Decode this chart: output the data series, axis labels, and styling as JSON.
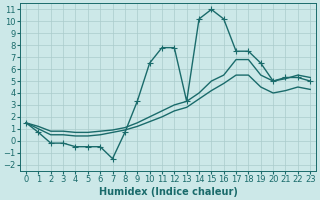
{
  "xlabel": "Humidex (Indice chaleur)",
  "xlim": [
    -0.5,
    23.5
  ],
  "ylim": [
    -2.5,
    11.5
  ],
  "xticks": [
    0,
    1,
    2,
    3,
    4,
    5,
    6,
    7,
    8,
    9,
    10,
    11,
    12,
    13,
    14,
    15,
    16,
    17,
    18,
    19,
    20,
    21,
    22,
    23
  ],
  "yticks": [
    -2,
    -1,
    0,
    1,
    2,
    3,
    4,
    5,
    6,
    7,
    8,
    9,
    10,
    11
  ],
  "bg_color": "#cce8e8",
  "grid_color": "#aacccc",
  "line_color": "#1a6b6b",
  "line1_x": [
    0,
    1,
    2,
    3,
    4,
    5,
    6,
    7,
    8,
    9,
    10,
    11,
    12,
    13,
    14,
    15,
    16,
    17,
    18,
    19,
    20,
    21,
    22,
    23
  ],
  "line1_y": [
    1.5,
    0.7,
    -0.2,
    -0.2,
    -0.5,
    -0.5,
    -0.5,
    -1.5,
    0.7,
    3.3,
    6.5,
    7.8,
    7.8,
    3.3,
    10.2,
    11.0,
    10.2,
    7.5,
    7.5,
    6.5,
    5.0,
    5.3,
    5.3,
    5.0
  ],
  "line2_x": [
    0,
    1,
    2,
    3,
    4,
    5,
    6,
    7,
    8,
    9,
    10,
    11,
    12,
    13,
    14,
    15,
    16,
    17,
    18,
    19,
    20,
    21,
    22,
    23
  ],
  "line2_y": [
    1.5,
    1.2,
    0.8,
    0.8,
    0.7,
    0.7,
    0.8,
    0.9,
    1.1,
    1.5,
    2.0,
    2.5,
    3.0,
    3.3,
    4.0,
    5.0,
    5.5,
    6.8,
    6.8,
    5.5,
    5.0,
    5.2,
    5.5,
    5.3
  ],
  "line3_x": [
    0,
    1,
    2,
    3,
    4,
    5,
    6,
    7,
    8,
    9,
    10,
    11,
    12,
    13,
    14,
    15,
    16,
    17,
    18,
    19,
    20,
    21,
    22,
    23
  ],
  "line3_y": [
    1.5,
    1.0,
    0.5,
    0.5,
    0.4,
    0.4,
    0.5,
    0.7,
    0.9,
    1.2,
    1.6,
    2.0,
    2.5,
    2.8,
    3.5,
    4.2,
    4.8,
    5.5,
    5.5,
    4.5,
    4.0,
    4.2,
    4.5,
    4.3
  ],
  "marker": "+",
  "markersize": 4,
  "linewidth": 1.0,
  "tick_fontsize": 6,
  "label_fontsize": 7
}
